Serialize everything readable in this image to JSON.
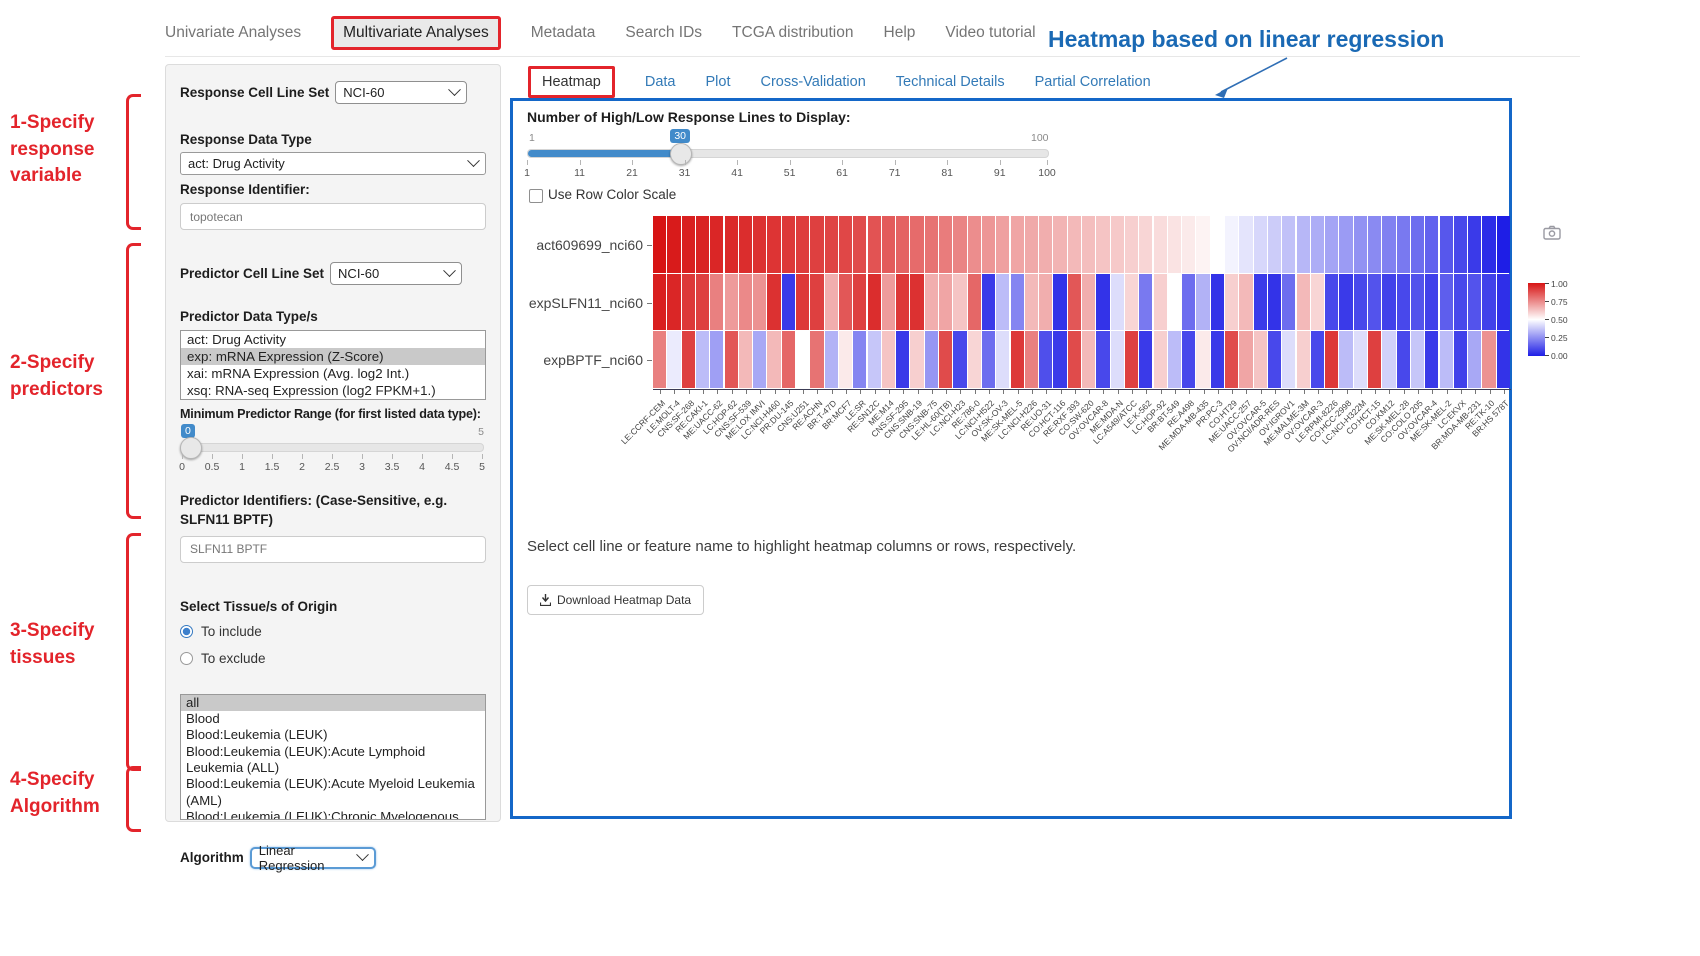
{
  "nav": {
    "items": [
      {
        "label": "Univariate Analyses",
        "active": false
      },
      {
        "label": "Multivariate Analyses",
        "active": true
      },
      {
        "label": "Metadata",
        "active": false
      },
      {
        "label": "Search IDs",
        "active": false
      },
      {
        "label": "TCGA distribution",
        "active": false
      },
      {
        "label": "Help",
        "active": false
      },
      {
        "label": "Video tutorial",
        "active": false
      }
    ]
  },
  "annotations": {
    "heatmap_title": "Heatmap based on linear regression",
    "steps": [
      "1-Specify response variable",
      "2-Specify predictors",
      "3-Specify tissues",
      "4-Specify Algorithm"
    ]
  },
  "sidebar": {
    "response_cell_line_set": {
      "label": "Response Cell Line Set",
      "value": "NCI-60"
    },
    "response_data_type": {
      "label": "Response Data Type",
      "value": "act: Drug Activity"
    },
    "response_identifier": {
      "label": "Response Identifier:",
      "value": "topotecan"
    },
    "predictor_cell_line_set": {
      "label": "Predictor Cell Line Set",
      "value": "NCI-60"
    },
    "predictor_data_types": {
      "label": "Predictor Data Type/s",
      "selected": "exp: mRNA Expression (Z-Score)",
      "options": [
        "act: Drug Activity",
        "exp: mRNA Expression (Z-Score)",
        "xai: mRNA Expression (Avg. log2 Int.)",
        "xsq: RNA-seq Expression (log2 FPKM+1.)"
      ]
    },
    "min_predictor_range": {
      "label": "Minimum Predictor Range (for first listed data type):",
      "value": "0",
      "max": "5",
      "ticks": [
        "0",
        "0.5",
        "1",
        "1.5",
        "2",
        "2.5",
        "3",
        "3.5",
        "4",
        "4.5",
        "5"
      ]
    },
    "predictor_identifiers": {
      "label": "Predictor Identifiers: (Case-Sensitive, e.g. SLFN11 BPTF)",
      "value": "SLFN11 BPTF"
    },
    "tissue": {
      "label": "Select Tissue/s of Origin",
      "include_label": "To include",
      "exclude_label": "To exclude",
      "include_selected": true,
      "selected": "all",
      "options": [
        "all",
        "Blood",
        "Blood:Leukemia (LEUK)",
        "Blood:Leukemia (LEUK):Acute Lymphoid Leukemia (ALL)",
        "Blood:Leukemia (LEUK):Acute Myeloid Leukemia (AML)",
        "Blood:Leukemia (LEUK):Chronic Myelogenous Leukemia (CML)"
      ]
    },
    "algorithm": {
      "label": "Algorithm",
      "value": "Linear Regression"
    }
  },
  "main": {
    "tabs": [
      "Heatmap",
      "Data",
      "Plot",
      "Cross-Validation",
      "Technical Details",
      "Partial Correlation"
    ],
    "active_tab": "Heatmap",
    "lines_slider": {
      "label": "Number of High/Low Response Lines to Display:",
      "value": "30",
      "min": "1",
      "max": "100",
      "ticks": [
        "1",
        "11",
        "21",
        "31",
        "41",
        "51",
        "61",
        "71",
        "81",
        "91",
        "100"
      ]
    },
    "row_color_scale_label": "Use Row Color Scale",
    "row_color_scale_checked": false,
    "help_text": "Select cell line or feature name to highlight heatmap columns or rows, respectively.",
    "download_button_label": "Download Heatmap Data"
  },
  "colors": {
    "panel_border": "#1467c8",
    "annotation_red": "#e3242b",
    "annotation_blue": "#1a69b4",
    "tab_link": "#337ab7",
    "slider_blue": "#428bca",
    "heat_red": "#d71414",
    "heat_blue": "#1e1ee6"
  },
  "chart_data": {
    "type": "heatmap",
    "rows": [
      "act609699_nci60",
      "expSLFN11_nci60",
      "expBPTF_nci60"
    ],
    "columns": [
      "LE:CCRF-CEM",
      "LE:MOLT-4",
      "CNS:SF-268",
      "RE:CAKI-1",
      "ME:UACC-62",
      "LC:HOP-62",
      "CNS:SF-539",
      "ME:LOX IMVI",
      "LC:NCI-H460",
      "PR:DU-145",
      "CNS:U251",
      "RE:ACHN",
      "BR:T-47D",
      "BR:MCF7",
      "LE:SR",
      "RE:SN12C",
      "ME:M14",
      "CNS:SF-295",
      "CNS:SNB-19",
      "CNS:SNB-75",
      "LE:HL-60(TB)",
      "LC:NCI-H23",
      "RE:786-0",
      "LC:NCI-H522",
      "OV:SK-OV-3",
      "ME:SK-MEL-5",
      "LC:NCI-H226",
      "RE:UO-31",
      "CO:HCT-116",
      "RE:RXF 393",
      "CO:SW-620",
      "OV:OVCAR-8",
      "ME:MDA-N",
      "LC:A549/ATCC",
      "LE:K-562",
      "LC:HOP-92",
      "BR:BT-549",
      "RE:A498",
      "ME:MDA-MB-435",
      "PR:PC-3",
      "CO:HT29",
      "ME:UACC-257",
      "OV:OVCAR-5",
      "OV:NCI/ADR-RES",
      "OV:IGROV1",
      "ME:MALME-3M",
      "OV:OVCAR-3",
      "LE:RPMI-8226",
      "CO:HCC-2998",
      "LC:NCI-H322M",
      "CO:HCT-15",
      "CO:KM12",
      "ME:SK-MEL-28",
      "CO:COLO 205",
      "OV:OVCAR-4",
      "ME:SK-MEL-2",
      "LC:EKVX",
      "BR:MDA-MB-231",
      "RE:TK-10",
      "BR:HS 578T"
    ],
    "series": [
      {
        "name": "act609699_nci60",
        "values": [
          1.0,
          0.98,
          0.97,
          0.96,
          0.95,
          0.94,
          0.93,
          0.92,
          0.91,
          0.9,
          0.89,
          0.88,
          0.87,
          0.86,
          0.85,
          0.83,
          0.81,
          0.79,
          0.77,
          0.75,
          0.73,
          0.71,
          0.69,
          0.67,
          0.65,
          0.64,
          0.63,
          0.62,
          0.61,
          0.6,
          0.59,
          0.58,
          0.57,
          0.56,
          0.55,
          0.54,
          0.53,
          0.52,
          0.51,
          0.5,
          0.49,
          0.47,
          0.45,
          0.43,
          0.41,
          0.39,
          0.37,
          0.35,
          0.33,
          0.31,
          0.29,
          0.27,
          0.25,
          0.22,
          0.19,
          0.16,
          0.12,
          0.08,
          0.04,
          0.0
        ]
      },
      {
        "name": "expSLFN11_nci60",
        "values": [
          0.97,
          0.95,
          0.9,
          0.88,
          0.72,
          0.66,
          0.7,
          0.68,
          0.92,
          0.08,
          0.9,
          0.88,
          0.62,
          0.82,
          0.88,
          0.93,
          0.66,
          0.9,
          0.92,
          0.62,
          0.64,
          0.58,
          0.78,
          0.08,
          0.4,
          0.28,
          0.6,
          0.62,
          0.06,
          0.82,
          0.62,
          0.06,
          0.46,
          0.55,
          0.25,
          0.56,
          0.5,
          0.22,
          0.38,
          0.06,
          0.56,
          0.6,
          0.08,
          0.06,
          0.22,
          0.6,
          0.55,
          0.12,
          0.08,
          0.12,
          0.15,
          0.1,
          0.12,
          0.15,
          0.1,
          0.18,
          0.12,
          0.15,
          0.1,
          0.05
        ]
      },
      {
        "name": "expBPTF_nci60",
        "values": [
          0.72,
          0.48,
          0.88,
          0.4,
          0.34,
          0.82,
          0.6,
          0.36,
          0.6,
          0.78,
          0.5,
          0.75,
          0.38,
          0.52,
          0.28,
          0.42,
          0.58,
          0.08,
          0.56,
          0.32,
          0.85,
          0.12,
          0.55,
          0.22,
          0.46,
          0.9,
          0.72,
          0.14,
          0.08,
          0.85,
          0.6,
          0.12,
          0.46,
          0.88,
          0.08,
          0.56,
          0.4,
          0.12,
          0.52,
          0.08,
          0.85,
          0.64,
          0.58,
          0.12,
          0.46,
          0.56,
          0.12,
          0.9,
          0.4,
          0.46,
          0.88,
          0.44,
          0.12,
          0.42,
          0.08,
          0.4,
          0.1,
          0.36,
          0.68,
          0.06
        ]
      }
    ],
    "colorbar": {
      "ticks": [
        "1.00",
        "0.75",
        "0.50",
        "0.25",
        "0.00"
      ],
      "min": 0,
      "max": 1
    },
    "colorscale": "blue-white-red",
    "legend_position": "right-outside",
    "grid": false
  }
}
